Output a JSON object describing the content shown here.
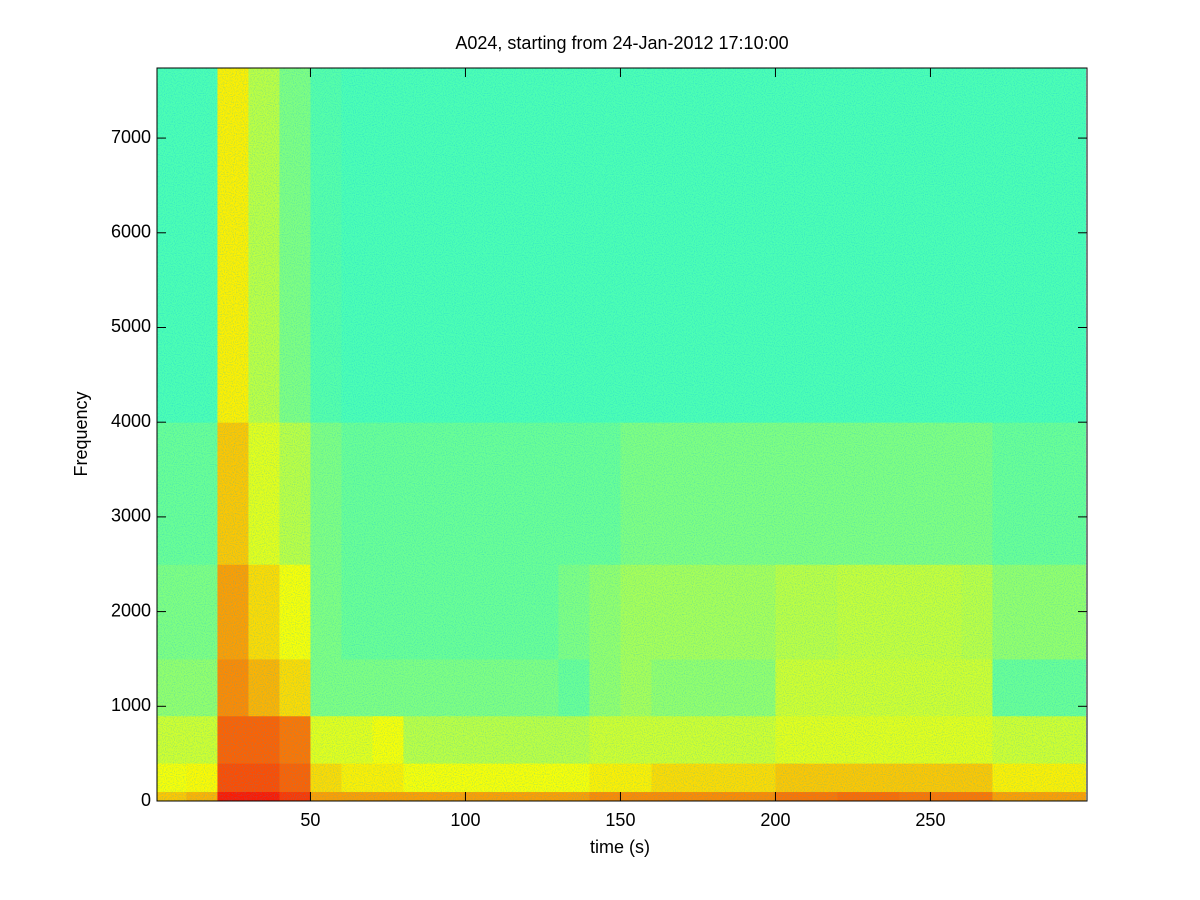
{
  "chart_data": {
    "type": "spectrogram",
    "title": "A024, starting from 24-Jan-2012 17:10:00",
    "x_label": "time (s)",
    "y_label": "Frequency",
    "colormap": "jet",
    "x_edges": [
      0,
      10,
      20,
      30,
      40,
      50,
      60,
      70,
      80,
      90,
      100,
      110,
      120,
      130,
      140,
      150,
      160,
      170,
      180,
      190,
      200,
      210,
      220,
      230,
      240,
      250,
      260,
      270,
      280,
      290,
      300
    ],
    "y_edges": [
      0,
      100,
      400,
      900,
      1500,
      2500,
      4000,
      7740
    ],
    "values": [
      [
        0.68,
        0.62,
        0.58,
        0.52,
        0.5,
        0.48,
        0.45
      ],
      [
        0.7,
        0.63,
        0.58,
        0.52,
        0.5,
        0.48,
        0.45
      ],
      [
        0.85,
        0.8,
        0.78,
        0.74,
        0.72,
        0.68,
        0.64
      ],
      [
        0.85,
        0.8,
        0.78,
        0.7,
        0.66,
        0.6,
        0.56
      ],
      [
        0.82,
        0.78,
        0.76,
        0.66,
        0.62,
        0.56,
        0.5
      ],
      [
        0.72,
        0.66,
        0.6,
        0.5,
        0.5,
        0.5,
        0.46
      ],
      [
        0.72,
        0.64,
        0.6,
        0.5,
        0.48,
        0.48,
        0.45
      ],
      [
        0.72,
        0.64,
        0.62,
        0.5,
        0.48,
        0.48,
        0.45
      ],
      [
        0.72,
        0.62,
        0.56,
        0.5,
        0.48,
        0.48,
        0.45
      ],
      [
        0.72,
        0.62,
        0.56,
        0.5,
        0.48,
        0.48,
        0.45
      ],
      [
        0.72,
        0.62,
        0.56,
        0.5,
        0.48,
        0.48,
        0.45
      ],
      [
        0.72,
        0.62,
        0.56,
        0.5,
        0.48,
        0.48,
        0.45
      ],
      [
        0.72,
        0.62,
        0.56,
        0.5,
        0.48,
        0.48,
        0.45
      ],
      [
        0.72,
        0.62,
        0.56,
        0.48,
        0.5,
        0.48,
        0.45
      ],
      [
        0.74,
        0.64,
        0.58,
        0.52,
        0.52,
        0.48,
        0.45
      ],
      [
        0.74,
        0.64,
        0.58,
        0.54,
        0.54,
        0.5,
        0.45
      ],
      [
        0.74,
        0.66,
        0.58,
        0.52,
        0.54,
        0.5,
        0.45
      ],
      [
        0.74,
        0.66,
        0.58,
        0.52,
        0.54,
        0.5,
        0.45
      ],
      [
        0.74,
        0.66,
        0.58,
        0.52,
        0.54,
        0.5,
        0.45
      ],
      [
        0.74,
        0.66,
        0.58,
        0.52,
        0.54,
        0.5,
        0.45
      ],
      [
        0.76,
        0.68,
        0.6,
        0.58,
        0.56,
        0.5,
        0.45
      ],
      [
        0.76,
        0.68,
        0.6,
        0.58,
        0.56,
        0.5,
        0.45
      ],
      [
        0.77,
        0.68,
        0.6,
        0.58,
        0.57,
        0.5,
        0.45
      ],
      [
        0.77,
        0.68,
        0.6,
        0.58,
        0.57,
        0.5,
        0.45
      ],
      [
        0.76,
        0.68,
        0.6,
        0.58,
        0.57,
        0.5,
        0.45
      ],
      [
        0.76,
        0.68,
        0.6,
        0.58,
        0.57,
        0.5,
        0.45
      ],
      [
        0.76,
        0.68,
        0.6,
        0.58,
        0.56,
        0.5,
        0.45
      ],
      [
        0.72,
        0.64,
        0.58,
        0.48,
        0.52,
        0.48,
        0.45
      ],
      [
        0.72,
        0.64,
        0.58,
        0.48,
        0.52,
        0.48,
        0.45
      ],
      [
        0.72,
        0.64,
        0.58,
        0.48,
        0.52,
        0.48,
        0.45
      ]
    ],
    "xlim": [
      0.5,
      300.5
    ],
    "ylim": [
      0,
      7740
    ],
    "xticks": [
      50,
      100,
      150,
      200,
      250
    ],
    "yticks": [
      0,
      1000,
      2000,
      3000,
      4000,
      5000,
      6000,
      7000
    ]
  }
}
